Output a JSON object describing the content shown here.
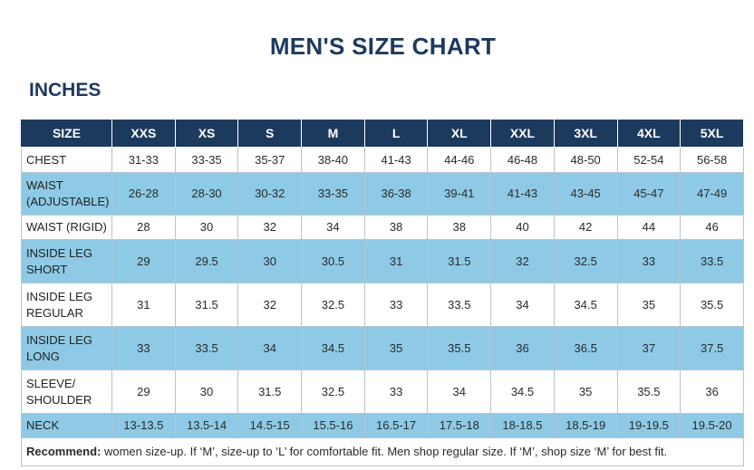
{
  "title": "MEN'S SIZE CHART",
  "units_heading": "INCHES",
  "header": {
    "size_label": "SIZE",
    "sizes": [
      "XXS",
      "XS",
      "S",
      "M",
      "L",
      "XL",
      "XXL",
      "3XL",
      "4XL",
      "5XL"
    ]
  },
  "rows": [
    {
      "label": "CHEST",
      "values": [
        "31-33",
        "33-35",
        "35-37",
        "38-40",
        "41-43",
        "44-46",
        "46-48",
        "48-50",
        "52-54",
        "56-58"
      ]
    },
    {
      "label_lines": [
        "WAIST",
        "(ADJUSTABLE)"
      ],
      "values": [
        "26-28",
        "28-30",
        "30-32",
        "33-35",
        "36-38",
        "39-41",
        "41-43",
        "43-45",
        "45-47",
        "47-49"
      ]
    },
    {
      "label": "WAIST (RIGID)",
      "values": [
        "28",
        "30",
        "32",
        "34",
        "38",
        "38",
        "40",
        "42",
        "44",
        "46"
      ]
    },
    {
      "label_lines": [
        "INSIDE LEG",
        "SHORT"
      ],
      "values": [
        "29",
        "29.5",
        "30",
        "30.5",
        "31",
        "31.5",
        "32",
        "32.5",
        "33",
        "33.5"
      ]
    },
    {
      "label_lines": [
        "INSIDE LEG",
        "REGULAR"
      ],
      "values": [
        "31",
        "31.5",
        "32",
        "32.5",
        "33",
        "33.5",
        "34",
        "34.5",
        "35",
        "35.5"
      ]
    },
    {
      "label_lines": [
        "INSIDE LEG",
        "LONG"
      ],
      "values": [
        "33",
        "33.5",
        "34",
        "34.5",
        "35",
        "35.5",
        "36",
        "36.5",
        "37",
        "37.5"
      ]
    },
    {
      "label_lines": [
        "SLEEVE/",
        "SHOULDER"
      ],
      "values": [
        "29",
        "30",
        "31.5",
        "32.5",
        "33",
        "34",
        "34.5",
        "35",
        "35.5",
        "36"
      ]
    },
    {
      "label": "NECK",
      "values": [
        "13-13.5",
        "13.5-14",
        "14.5-15",
        "15.5-16",
        "16.5-17",
        "17.5-18",
        "18-18.5",
        "18.5-19",
        "19-19.5",
        "19.5-20"
      ]
    }
  ],
  "note": {
    "label": "Recommend:",
    "text": " women size-up. If ‘M’, size-up to ‘L’ for comfortable fit. Men shop regular size. If ‘M’, shop size ‘M’ for best fit."
  },
  "colors": {
    "header_bg": "#1c3a5e",
    "alt_row_bg": "#8ecae6",
    "title": "#1c3a5e"
  }
}
